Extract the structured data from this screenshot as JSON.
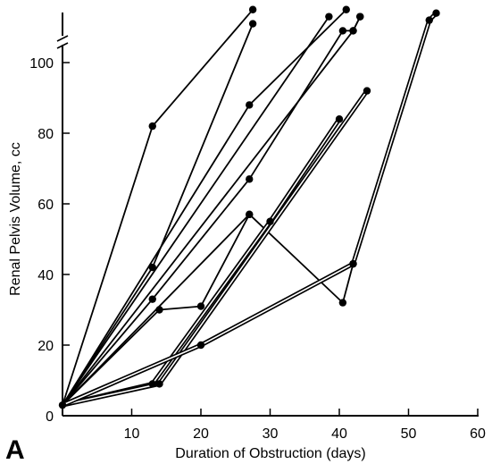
{
  "chart_data": {
    "type": "line",
    "xlabel": "Duration of Obstruction (days)",
    "ylabel": "Renal Pelvis Volume, cc",
    "panel_label": "A",
    "xlim": [
      0,
      60
    ],
    "ylim": [
      0,
      115
    ],
    "x_ticks": [
      10,
      20,
      30,
      40,
      50,
      60
    ],
    "y_ticks": [
      0,
      20,
      40,
      60,
      80,
      100
    ],
    "y_axis_break": true,
    "grid": false,
    "series": [
      {
        "x": [
          0,
          13,
          27.5
        ],
        "y": [
          3,
          82,
          115
        ],
        "style": "single"
      },
      {
        "x": [
          0,
          13,
          27.5
        ],
        "y": [
          3,
          42,
          111
        ],
        "style": "single"
      },
      {
        "x": [
          0,
          27,
          41
        ],
        "y": [
          3,
          88,
          115
        ],
        "style": "single"
      },
      {
        "x": [
          0,
          38.5
        ],
        "y": [
          3,
          113
        ],
        "style": "single"
      },
      {
        "x": [
          0,
          42,
          43
        ],
        "y": [
          3,
          109,
          113
        ],
        "style": "single"
      },
      {
        "x": [
          0,
          13,
          27,
          40.5,
          42,
          43
        ],
        "y": [
          3,
          33,
          67,
          109,
          109,
          113
        ],
        "style": "single"
      },
      {
        "x": [
          0,
          14,
          20,
          27
        ],
        "y": [
          3,
          30,
          31,
          57
        ],
        "style": "single"
      },
      {
        "x": [
          0,
          27,
          40.5,
          42
        ],
        "y": [
          3,
          57,
          32,
          43
        ],
        "style": "single"
      },
      {
        "x": [
          0,
          13,
          30,
          40
        ],
        "y": [
          3,
          9,
          55,
          84
        ],
        "style": "double"
      },
      {
        "x": [
          0,
          14,
          44
        ],
        "y": [
          3,
          9,
          92
        ],
        "style": "double"
      },
      {
        "x": [
          0,
          20,
          42,
          53,
          54
        ],
        "y": [
          3,
          20,
          43,
          112,
          114
        ],
        "style": "double"
      }
    ]
  }
}
